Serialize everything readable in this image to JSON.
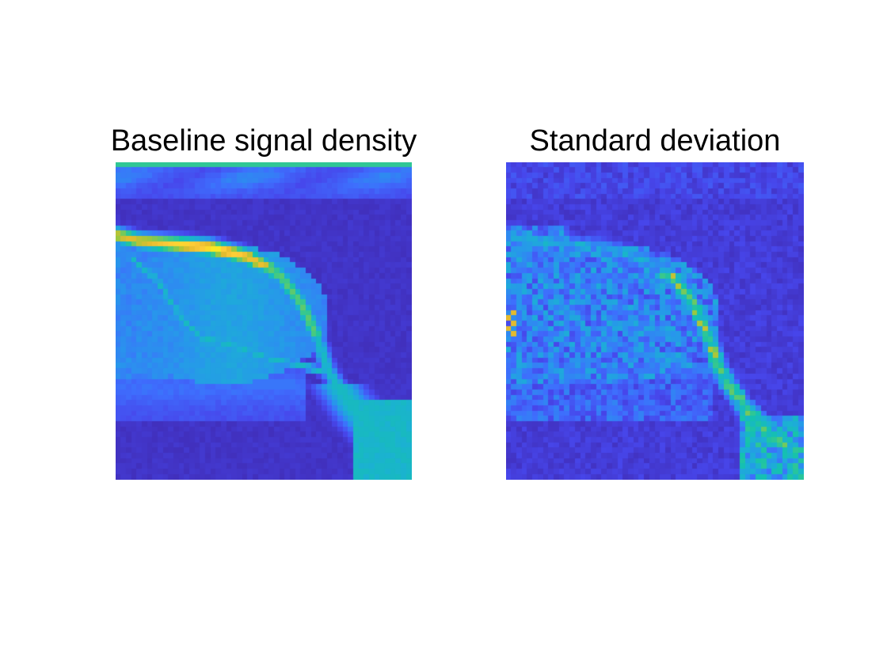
{
  "chart_data": [
    {
      "type": "heatmap",
      "title": "Baseline signal density",
      "colormap": "parula",
      "colormap_colors": [
        "#3e26a8",
        "#4746eb",
        "#3e6efd",
        "#2797eb",
        "#1bb1d3",
        "#14c2ad",
        "#4bcb7c",
        "#9fc83c",
        "#e4bb2e",
        "#fdc939",
        "#f9fb15"
      ],
      "grid": false,
      "axes_visible": false,
      "rows": 60,
      "cols": 56,
      "features": "bright curved vessel along upper-left to lower-right, highest intensity (yellow) near upper-left arc, rounded tissue region beneath, dark (low) background elsewhere"
    },
    {
      "type": "heatmap",
      "title": "Standard deviation",
      "colormap": "parula",
      "colormap_colors": [
        "#3e26a8",
        "#4746eb",
        "#3e6efd",
        "#2797eb",
        "#1bb1d3",
        "#14c2ad",
        "#4bcb7c",
        "#9fc83c",
        "#e4bb2e",
        "#fdc939",
        "#f9fb15"
      ],
      "grid": false,
      "axes_visible": false,
      "rows": 60,
      "cols": 56,
      "features": "noisy texture; higher variability (yellow) along right edge of vessel arc, moderate speckle over tissue region, low elsewhere"
    }
  ]
}
